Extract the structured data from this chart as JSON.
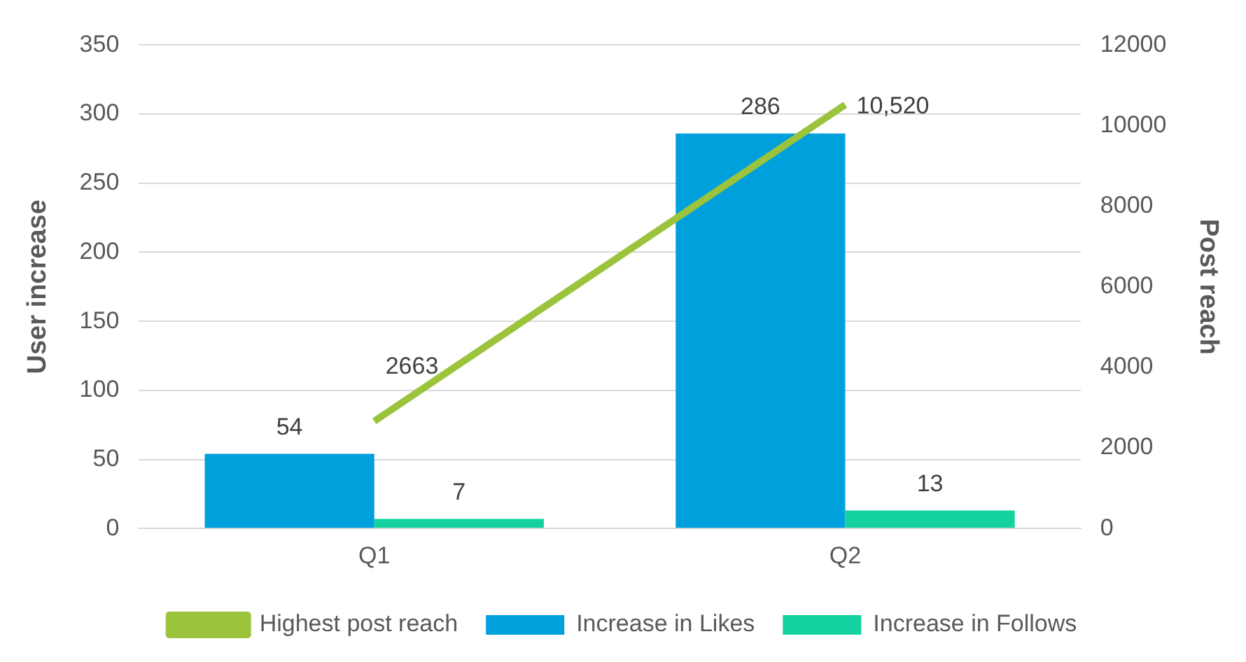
{
  "chart_data": {
    "type": "bar",
    "categories": [
      "Q1",
      "Q2"
    ],
    "series": [
      {
        "name": "Increase in Likes",
        "color": "#00a0dc",
        "values": [
          54,
          286
        ],
        "value_labels": [
          "54",
          "286"
        ]
      },
      {
        "name": "Increase in Follows",
        "color": "#14d2a0",
        "values": [
          7,
          13
        ],
        "value_labels": [
          "7",
          "13"
        ]
      },
      {
        "name": "Highest post reach",
        "type": "line",
        "axis": "y2",
        "color": "#9bc33c",
        "values": [
          2663,
          10520
        ],
        "value_labels": [
          "2663",
          "10,520"
        ]
      }
    ],
    "ylabel": "User increase",
    "y2label": "Post reach",
    "ylim": [
      0,
      350
    ],
    "yticks": [
      0,
      50,
      100,
      150,
      200,
      250,
      300,
      350
    ],
    "y2lim": [
      0,
      12000
    ],
    "y2ticks": [
      0,
      2000,
      4000,
      6000,
      8000,
      10000,
      12000
    ],
    "grid": "y",
    "legend": "bottom",
    "marker": "none",
    "line_style": "solid"
  }
}
